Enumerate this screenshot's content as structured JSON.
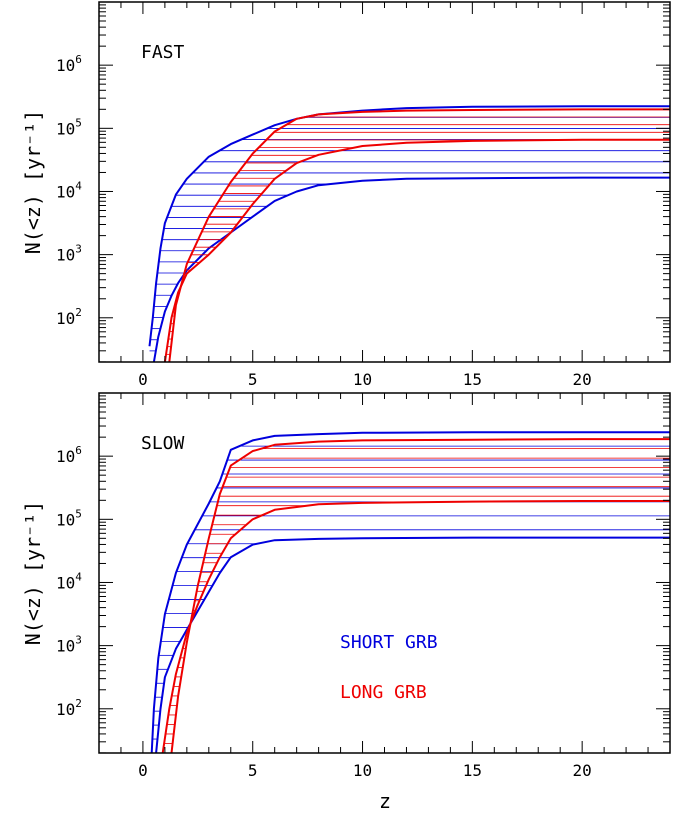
{
  "chart_data": [
    {
      "type": "area",
      "panel_label": "FAST",
      "xlabel": "z",
      "ylabel": "N(<z) [yr⁻¹]",
      "xlim": [
        -2,
        24
      ],
      "ylim_log10": [
        1.3,
        7.0
      ],
      "y_scale": "log",
      "x_ticks": [
        0,
        5,
        10,
        15,
        20
      ],
      "x_tick_labels": [
        "0",
        "5",
        "10",
        "15",
        "20"
      ],
      "y_ticks": [
        {
          "label": "10",
          "exp": "2"
        },
        {
          "label": "10",
          "exp": "3"
        },
        {
          "label": "10",
          "exp": "4"
        },
        {
          "label": "10",
          "exp": "5"
        },
        {
          "label": "10",
          "exp": "6"
        }
      ],
      "series": [
        {
          "color": "#0000dd",
          "hatch_count": 22,
          "upper": {
            "x": [
              0.3,
              0.45,
              0.6,
              0.8,
              1.0,
              1.5,
              2.0,
              3.0,
              4.0,
              5.0,
              6.0,
              7.0,
              8.0,
              10.0,
              12.0,
              15.0,
              20.0,
              24.0
            ],
            "y": [
              1.55,
              2.0,
              2.55,
              3.1,
              3.5,
              3.95,
              4.2,
              4.55,
              4.75,
              4.9,
              5.05,
              5.15,
              5.22,
              5.28,
              5.32,
              5.34,
              5.35,
              5.35
            ]
          },
          "lower": {
            "x": [
              0.5,
              0.7,
              1.0,
              1.3,
              1.6,
              2.0,
              3.0,
              4.0,
              5.0,
              6.0,
              7.0,
              8.0,
              10.0,
              12.0,
              15.0,
              20.0,
              24.0
            ],
            "y": [
              1.3,
              1.7,
              2.1,
              2.35,
              2.55,
              2.75,
              3.1,
              3.35,
              3.6,
              3.85,
              4.0,
              4.1,
              4.17,
              4.2,
              4.21,
              4.22,
              4.22
            ]
          }
        },
        {
          "color": "#ee0000",
          "hatch_count": 32,
          "upper": {
            "x": [
              1.2,
              1.5,
              2.0,
              3.0,
              4.0,
              5.0,
              6.0,
              7.0,
              8.0,
              10.0,
              12.0,
              15.0,
              20.0,
              24.0
            ],
            "y": [
              1.3,
              2.2,
              2.85,
              3.6,
              4.15,
              4.6,
              4.95,
              5.15,
              5.22,
              5.26,
              5.28,
              5.29,
              5.3,
              5.3
            ]
          },
          "lower": {
            "x": [
              1.0,
              1.3,
              1.6,
              2.0,
              3.0,
              4.0,
              5.0,
              6.0,
              7.0,
              8.0,
              10.0,
              12.0,
              15.0,
              20.0,
              24.0
            ],
            "y": [
              1.3,
              2.0,
              2.4,
              2.7,
              3.0,
              3.35,
              3.8,
              4.2,
              4.45,
              4.58,
              4.72,
              4.77,
              4.8,
              4.82,
              4.82
            ]
          }
        }
      ]
    },
    {
      "type": "area",
      "panel_label": "SLOW",
      "xlabel": "z",
      "ylabel": "N(<z) [yr⁻¹]",
      "xlim": [
        -2,
        24
      ],
      "ylim_log10": [
        1.3,
        7.0
      ],
      "y_scale": "log",
      "x_ticks": [
        0,
        5,
        10,
        15,
        20
      ],
      "x_tick_labels": [
        "0",
        "5",
        "10",
        "15",
        "20"
      ],
      "y_ticks": [
        {
          "label": "10",
          "exp": "2"
        },
        {
          "label": "10",
          "exp": "3"
        },
        {
          "label": "10",
          "exp": "4"
        },
        {
          "label": "10",
          "exp": "5"
        },
        {
          "label": "10",
          "exp": "6"
        }
      ],
      "series": [
        {
          "color": "#0000dd",
          "hatch_count": 22,
          "upper": {
            "x": [
              0.4,
              0.5,
              0.7,
              1.0,
              1.5,
              2.0,
              3.0,
              3.5,
              4.0,
              5.0,
              6.0,
              8.0,
              10.0,
              15.0,
              20.0,
              24.0
            ],
            "y": [
              1.3,
              2.0,
              2.8,
              3.5,
              4.15,
              4.6,
              5.25,
              5.6,
              6.1,
              6.25,
              6.32,
              6.35,
              6.37,
              6.38,
              6.38,
              6.38
            ]
          },
          "lower": {
            "x": [
              0.6,
              0.8,
              1.0,
              1.5,
              2.0,
              2.5,
              3.0,
              3.5,
              4.0,
              5.0,
              6.0,
              8.0,
              10.0,
              15.0,
              20.0,
              24.0
            ],
            "y": [
              1.3,
              2.0,
              2.5,
              2.95,
              3.25,
              3.55,
              3.85,
              4.15,
              4.4,
              4.6,
              4.67,
              4.69,
              4.7,
              4.71,
              4.71,
              4.71
            ]
          }
        },
        {
          "color": "#ee0000",
          "hatch_count": 32,
          "upper": {
            "x": [
              1.3,
              1.6,
              2.0,
              2.5,
              3.0,
              3.5,
              4.0,
              5.0,
              6.0,
              8.0,
              10.0,
              15.0,
              20.0,
              24.0
            ],
            "y": [
              1.3,
              2.2,
              3.05,
              3.95,
              4.7,
              5.4,
              5.85,
              6.08,
              6.18,
              6.23,
              6.25,
              6.26,
              6.27,
              6.27
            ]
          },
          "lower": {
            "x": [
              0.9,
              1.2,
              1.5,
              2.0,
              2.5,
              3.0,
              3.5,
              4.0,
              5.0,
              6.0,
              8.0,
              10.0,
              15.0,
              20.0,
              24.0
            ],
            "y": [
              1.3,
              2.0,
              2.55,
              3.2,
              3.65,
              4.05,
              4.4,
              4.7,
              5.0,
              5.15,
              5.24,
              5.26,
              5.28,
              5.29,
              5.29
            ]
          }
        }
      ],
      "legend": [
        {
          "label": "SHORT GRB",
          "color": "#0000dd"
        },
        {
          "label": "LONG GRB",
          "color": "#ee0000"
        }
      ]
    }
  ]
}
